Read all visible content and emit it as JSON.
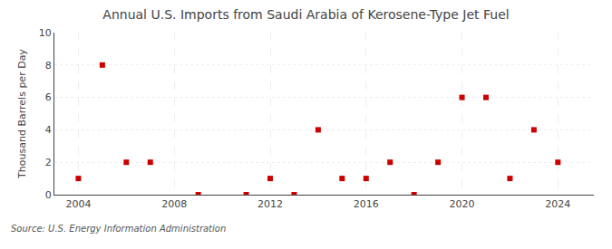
{
  "chart_data": {
    "type": "scatter",
    "title": "Annual U.S. Imports from Saudi Arabia of Kerosene-Type Jet Fuel",
    "ylabel": "Thousand Barrels per Day",
    "annotations": [
      "Source: U.S. Energy Information Administration"
    ],
    "x": [
      2004,
      2005,
      2006,
      2007,
      2009,
      2011,
      2012,
      2013,
      2014,
      2015,
      2016,
      2017,
      2018,
      2019,
      2020,
      2021,
      2022,
      2023,
      2024
    ],
    "values": [
      1,
      8,
      2,
      2,
      0,
      0,
      1,
      0,
      4,
      1,
      1,
      2,
      0,
      2,
      6,
      6,
      1,
      4,
      2
    ],
    "xlim": [
      2003.0,
      2025.5
    ],
    "ylim": [
      0,
      10
    ],
    "xticks": [
      2004,
      2008,
      2012,
      2016,
      2020,
      2024
    ],
    "yticks": [
      0,
      2,
      4,
      6,
      8,
      10
    ],
    "color": "#cc0000",
    "marker": "square",
    "grid": true
  }
}
